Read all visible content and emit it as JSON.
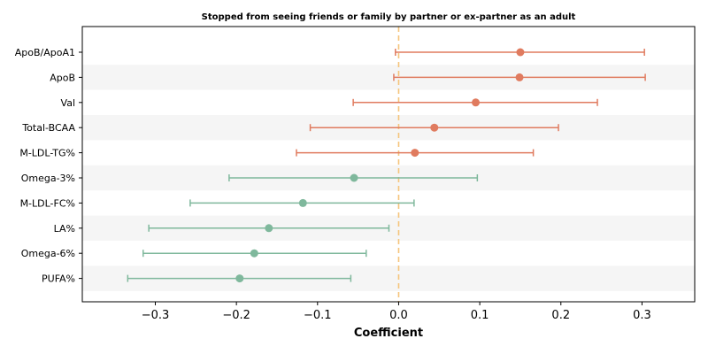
{
  "chart_data": {
    "type": "forest",
    "title": "Stopped from seeing friends or family by partner or ex-partner as an adult",
    "xlabel": "Coefficient",
    "ylabel": "",
    "xlim": [
      -0.39,
      0.365
    ],
    "xticks": [
      -0.3,
      -0.2,
      -0.1,
      0.0,
      0.1,
      0.2,
      0.3
    ],
    "xtick_labels": [
      "−0.3",
      "−0.2",
      "−0.1",
      "0.0",
      "0.1",
      "0.2",
      "0.3"
    ],
    "reference_line": 0.0,
    "alternating_row_shading": true,
    "grid": false,
    "colors": {
      "positive": "#e07b5f",
      "negative": "#7fb89c",
      "reference": "#f5c47a",
      "row_shade": "#f5f5f5"
    },
    "rows": [
      {
        "label": "ApoB/ApoA1",
        "estimate": 0.15,
        "lower": -0.004,
        "upper": 0.303
      },
      {
        "label": "ApoB",
        "estimate": 0.149,
        "lower": -0.006,
        "upper": 0.304
      },
      {
        "label": "Val",
        "estimate": 0.095,
        "lower": -0.056,
        "upper": 0.245
      },
      {
        "label": "Total-BCAA",
        "estimate": 0.044,
        "lower": -0.109,
        "upper": 0.197
      },
      {
        "label": "M-LDL-TG%",
        "estimate": 0.02,
        "lower": -0.126,
        "upper": 0.166
      },
      {
        "label": "Omega-3%",
        "estimate": -0.055,
        "lower": -0.209,
        "upper": 0.097
      },
      {
        "label": "M-LDL-FC%",
        "estimate": -0.118,
        "lower": -0.257,
        "upper": 0.019
      },
      {
        "label": "LA%",
        "estimate": -0.16,
        "lower": -0.308,
        "upper": -0.012
      },
      {
        "label": "Omega-6%",
        "estimate": -0.178,
        "lower": -0.315,
        "upper": -0.04
      },
      {
        "label": "PUFA%",
        "estimate": -0.196,
        "lower": -0.334,
        "upper": -0.059
      }
    ]
  }
}
